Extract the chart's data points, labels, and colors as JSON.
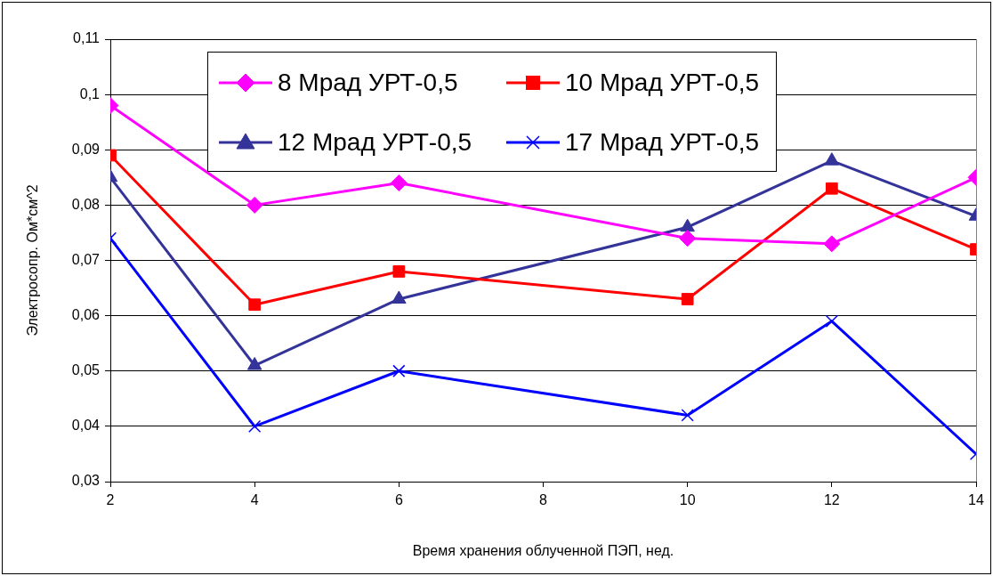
{
  "chart_data": {
    "type": "line",
    "xlabel": "Время хранения облученной ПЭП, нед.",
    "ylabel": "Электросопр. Ом*см^2",
    "x": [
      2,
      4,
      6,
      10,
      12,
      14
    ],
    "series": [
      {
        "name": "8 Мрад УРТ-0,5",
        "color": "#ff00ff",
        "marker": "diamond",
        "values": [
          0.098,
          0.08,
          0.084,
          0.074,
          0.073,
          0.085
        ]
      },
      {
        "name": "10 Мрад УРТ-0,5",
        "color": "#ff0000",
        "marker": "square",
        "values": [
          0.089,
          0.062,
          0.068,
          0.063,
          0.083,
          0.072
        ]
      },
      {
        "name": "12 Мрад УРТ-0,5",
        "color": "#333399",
        "marker": "triangle",
        "values": [
          0.085,
          0.051,
          0.063,
          0.076,
          0.088,
          0.078
        ]
      },
      {
        "name": "17 Мрад УРТ-0,5",
        "color": "#0000ff",
        "marker": "cross",
        "values": [
          0.074,
          0.04,
          0.05,
          0.042,
          0.059,
          0.035
        ]
      }
    ],
    "xlim": [
      2,
      14
    ],
    "xticks": [
      2,
      4,
      6,
      8,
      10,
      12,
      14
    ],
    "ylim": [
      0.03,
      0.11
    ],
    "yticks": [
      {
        "value": 0.03,
        "label": "0,03"
      },
      {
        "value": 0.04,
        "label": "0,04"
      },
      {
        "value": 0.05,
        "label": "0,05"
      },
      {
        "value": 0.06,
        "label": "0,06"
      },
      {
        "value": 0.07,
        "label": "0,07"
      },
      {
        "value": 0.08,
        "label": "0,08"
      },
      {
        "value": 0.09,
        "label": "0,09"
      },
      {
        "value": 0.1,
        "label": "0,1"
      },
      {
        "value": 0.11,
        "label": "0,11"
      }
    ],
    "grid": "y",
    "legend": "top",
    "line_style": "solid"
  }
}
